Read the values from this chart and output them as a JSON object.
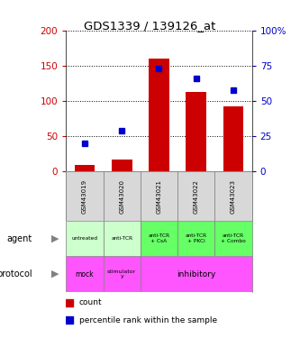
{
  "title": "GDS1339 / 139126_at",
  "samples": [
    "GSM43019",
    "GSM43020",
    "GSM43021",
    "GSM43022",
    "GSM43023"
  ],
  "count_values": [
    10,
    17,
    160,
    113,
    93
  ],
  "percentile_values": [
    20,
    29,
    73,
    66,
    58
  ],
  "left_ylim": [
    0,
    200
  ],
  "right_ylim": [
    0,
    100
  ],
  "left_yticks": [
    0,
    50,
    100,
    150,
    200
  ],
  "right_yticks": [
    0,
    25,
    50,
    75,
    100
  ],
  "left_yticklabels": [
    "0",
    "50",
    "100",
    "150",
    "200"
  ],
  "right_yticklabels": [
    "0",
    "25",
    "50",
    "75",
    "100%"
  ],
  "bar_color": "#cc0000",
  "dot_color": "#0000cc",
  "agent_labels": [
    "untreated",
    "anti-TCR",
    "anti-TCR\n+ CsA",
    "anti-TCR\n+ PKCi",
    "anti-TCR\n+ Combo"
  ],
  "agent_colors_list": [
    "#ccffcc",
    "#ccffcc",
    "#66ff66",
    "#66ff66",
    "#66ff66"
  ],
  "legend_count_label": "count",
  "legend_pct_label": "percentile rank within the sample",
  "background_color": "#ffffff",
  "plot_bg_color": "#ffffff",
  "sample_box_color": "#d8d8d8",
  "left_ylabel_color": "#cc0000",
  "right_ylabel_color": "#0000cc",
  "protocol_pink": "#ff55ff"
}
